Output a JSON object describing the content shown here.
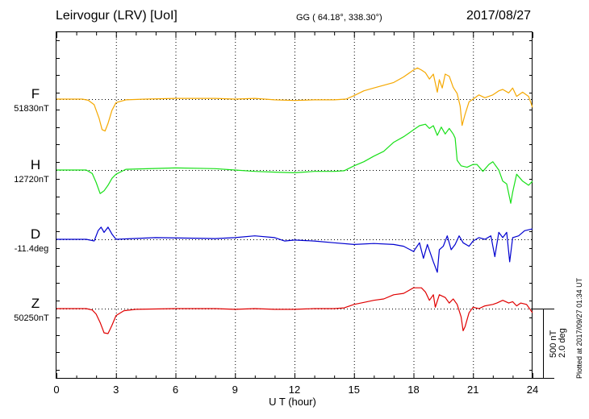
{
  "header": {
    "title": "Leirvogur (LRV)  [UoI]",
    "coords": "GG ( 64.18°, 338.30°)",
    "date": "2017/08/27"
  },
  "channels": [
    {
      "name": "F",
      "baseline": "51830nT",
      "color": "#f5a800"
    },
    {
      "name": "H",
      "baseline": "12720nT",
      "color": "#18e018"
    },
    {
      "name": "D",
      "baseline": "-11.4deg",
      "color": "#0000d0"
    },
    {
      "name": "Z",
      "baseline": "50250nT",
      "color": "#e00000"
    }
  ],
  "scale": {
    "nt": "500 nT",
    "deg": "2.0 deg"
  },
  "plotted_at": "Plotted at 2017/09/27 01:34 UT",
  "chart_data": {
    "type": "line",
    "title": "Leirvogur (LRV)  [UoI]",
    "xlabel": "U T (hour)",
    "ylabel": "",
    "xlim": [
      0,
      24
    ],
    "x_ticks": [
      0,
      3,
      6,
      9,
      12,
      15,
      18,
      21,
      24
    ],
    "grid": true,
    "scale_bar": "500 nT / 2.0 deg",
    "series": [
      {
        "name": "F",
        "unit": "nT offset from 51830nT",
        "points": [
          [
            0,
            0
          ],
          [
            1.3,
            0
          ],
          [
            1.6,
            -8
          ],
          [
            1.9,
            -40
          ],
          [
            2.15,
            -140
          ],
          [
            2.3,
            -220
          ],
          [
            2.45,
            -230
          ],
          [
            2.6,
            -175
          ],
          [
            2.8,
            -80
          ],
          [
            3.0,
            -25
          ],
          [
            3.5,
            -5
          ],
          [
            4.5,
            0
          ],
          [
            6,
            5
          ],
          [
            8,
            5
          ],
          [
            9,
            0
          ],
          [
            10,
            5
          ],
          [
            11,
            -5
          ],
          [
            12,
            -10
          ],
          [
            13,
            -5
          ],
          [
            14,
            -5
          ],
          [
            14.6,
            0
          ],
          [
            15.0,
            25
          ],
          [
            15.5,
            60
          ],
          [
            16,
            80
          ],
          [
            16.5,
            100
          ],
          [
            17.0,
            120
          ],
          [
            17.5,
            160
          ],
          [
            18.0,
            210
          ],
          [
            18.2,
            225
          ],
          [
            18.4,
            210
          ],
          [
            18.6,
            190
          ],
          [
            18.8,
            145
          ],
          [
            19.0,
            180
          ],
          [
            19.2,
            50
          ],
          [
            19.3,
            140
          ],
          [
            19.45,
            80
          ],
          [
            19.6,
            180
          ],
          [
            19.8,
            165
          ],
          [
            20.0,
            85
          ],
          [
            20.2,
            40
          ],
          [
            20.35,
            -50
          ],
          [
            20.45,
            -190
          ],
          [
            20.6,
            -110
          ],
          [
            20.8,
            -20
          ],
          [
            21.0,
            0
          ],
          [
            21.3,
            30
          ],
          [
            21.6,
            10
          ],
          [
            22,
            30
          ],
          [
            22.3,
            60
          ],
          [
            22.5,
            70
          ],
          [
            22.8,
            45
          ],
          [
            23,
            80
          ],
          [
            23.2,
            20
          ],
          [
            23.5,
            50
          ],
          [
            23.8,
            20
          ],
          [
            24,
            -60
          ]
        ]
      },
      {
        "name": "H",
        "unit": "nT offset from 12720nT",
        "points": [
          [
            0,
            0
          ],
          [
            1.5,
            0
          ],
          [
            1.8,
            -25
          ],
          [
            2.0,
            -90
          ],
          [
            2.2,
            -170
          ],
          [
            2.4,
            -150
          ],
          [
            2.6,
            -110
          ],
          [
            2.8,
            -60
          ],
          [
            3.0,
            -30
          ],
          [
            3.5,
            5
          ],
          [
            6,
            15
          ],
          [
            8,
            10
          ],
          [
            9,
            0
          ],
          [
            10,
            -10
          ],
          [
            11,
            -15
          ],
          [
            12,
            -20
          ],
          [
            13,
            -10
          ],
          [
            14,
            -10
          ],
          [
            14.5,
            -5
          ],
          [
            15,
            30
          ],
          [
            15.5,
            60
          ],
          [
            16,
            100
          ],
          [
            16.5,
            135
          ],
          [
            17,
            200
          ],
          [
            17.5,
            240
          ],
          [
            17.8,
            270
          ],
          [
            18,
            290
          ],
          [
            18.3,
            320
          ],
          [
            18.6,
            330
          ],
          [
            18.8,
            300
          ],
          [
            19,
            320
          ],
          [
            19.2,
            250
          ],
          [
            19.4,
            310
          ],
          [
            19.6,
            260
          ],
          [
            19.8,
            300
          ],
          [
            20,
            260
          ],
          [
            20.1,
            230
          ],
          [
            20.2,
            70
          ],
          [
            20.4,
            30
          ],
          [
            20.7,
            20
          ],
          [
            21,
            40
          ],
          [
            21.2,
            40
          ],
          [
            21.5,
            -10
          ],
          [
            21.8,
            40
          ],
          [
            22,
            60
          ],
          [
            22.3,
            0
          ],
          [
            22.5,
            -80
          ],
          [
            22.7,
            -100
          ],
          [
            22.9,
            -240
          ],
          [
            23,
            -160
          ],
          [
            23.2,
            -30
          ],
          [
            23.5,
            -80
          ],
          [
            23.8,
            -110
          ],
          [
            24,
            -80
          ]
        ]
      },
      {
        "name": "D",
        "unit": "deg offset from -11.4deg",
        "points": [
          [
            0,
            0
          ],
          [
            1.5,
            0
          ],
          [
            1.9,
            -0.05
          ],
          [
            2.1,
            0.25
          ],
          [
            2.25,
            0.35
          ],
          [
            2.4,
            0.2
          ],
          [
            2.6,
            0.35
          ],
          [
            2.8,
            0.15
          ],
          [
            3,
            0
          ],
          [
            5,
            0.05
          ],
          [
            8,
            0.02
          ],
          [
            9,
            0.05
          ],
          [
            10,
            0.1
          ],
          [
            11,
            0.05
          ],
          [
            11.5,
            -0.05
          ],
          [
            12,
            -0.02
          ],
          [
            13,
            -0.05
          ],
          [
            14,
            -0.1
          ],
          [
            15,
            -0.15
          ],
          [
            16,
            -0.12
          ],
          [
            17,
            -0.15
          ],
          [
            17.5,
            -0.2
          ],
          [
            18,
            -0.35
          ],
          [
            18.3,
            -0.1
          ],
          [
            18.5,
            -0.55
          ],
          [
            18.7,
            -0.15
          ],
          [
            19,
            -0.65
          ],
          [
            19.2,
            -0.95
          ],
          [
            19.3,
            -0.3
          ],
          [
            19.5,
            -0.2
          ],
          [
            19.7,
            0.1
          ],
          [
            19.9,
            -0.3
          ],
          [
            20.1,
            -0.15
          ],
          [
            20.3,
            0.1
          ],
          [
            20.5,
            -0.1
          ],
          [
            20.8,
            -0.2
          ],
          [
            21,
            -0.05
          ],
          [
            21.3,
            0.05
          ],
          [
            21.6,
            0
          ],
          [
            21.9,
            0.1
          ],
          [
            22.1,
            -0.5
          ],
          [
            22.3,
            0.2
          ],
          [
            22.5,
            0.05
          ],
          [
            22.7,
            0.2
          ],
          [
            22.85,
            -0.65
          ],
          [
            23,
            0.05
          ],
          [
            23.3,
            0.1
          ],
          [
            23.6,
            0.25
          ],
          [
            24,
            0.3
          ]
        ]
      },
      {
        "name": "Z",
        "unit": "nT offset from 50250nT",
        "points": [
          [
            0,
            0
          ],
          [
            1.5,
            0
          ],
          [
            1.8,
            -10
          ],
          [
            2.0,
            -40
          ],
          [
            2.2,
            -100
          ],
          [
            2.4,
            -175
          ],
          [
            2.6,
            -180
          ],
          [
            2.8,
            -120
          ],
          [
            3.0,
            -50
          ],
          [
            3.4,
            -15
          ],
          [
            4,
            -5
          ],
          [
            6,
            0
          ],
          [
            8,
            0
          ],
          [
            9,
            -5
          ],
          [
            10,
            0
          ],
          [
            11,
            -5
          ],
          [
            12,
            -5
          ],
          [
            13,
            0
          ],
          [
            14,
            0
          ],
          [
            14.5,
            5
          ],
          [
            15,
            30
          ],
          [
            15.5,
            45
          ],
          [
            16,
            60
          ],
          [
            16.5,
            70
          ],
          [
            17,
            100
          ],
          [
            17.5,
            110
          ],
          [
            18,
            150
          ],
          [
            18.4,
            150
          ],
          [
            18.6,
            120
          ],
          [
            18.8,
            60
          ],
          [
            19.0,
            100
          ],
          [
            19.1,
            10
          ],
          [
            19.3,
            100
          ],
          [
            19.6,
            80
          ],
          [
            19.8,
            40
          ],
          [
            20.0,
            70
          ],
          [
            20.2,
            30
          ],
          [
            20.4,
            -60
          ],
          [
            20.5,
            -160
          ],
          [
            20.6,
            -130
          ],
          [
            20.8,
            -30
          ],
          [
            21,
            10
          ],
          [
            21.3,
            0
          ],
          [
            21.6,
            20
          ],
          [
            22,
            30
          ],
          [
            22.2,
            40
          ],
          [
            22.5,
            60
          ],
          [
            22.8,
            40
          ],
          [
            23.0,
            50
          ],
          [
            23.2,
            20
          ],
          [
            23.4,
            40
          ],
          [
            23.7,
            30
          ],
          [
            24,
            -30
          ]
        ]
      }
    ]
  }
}
